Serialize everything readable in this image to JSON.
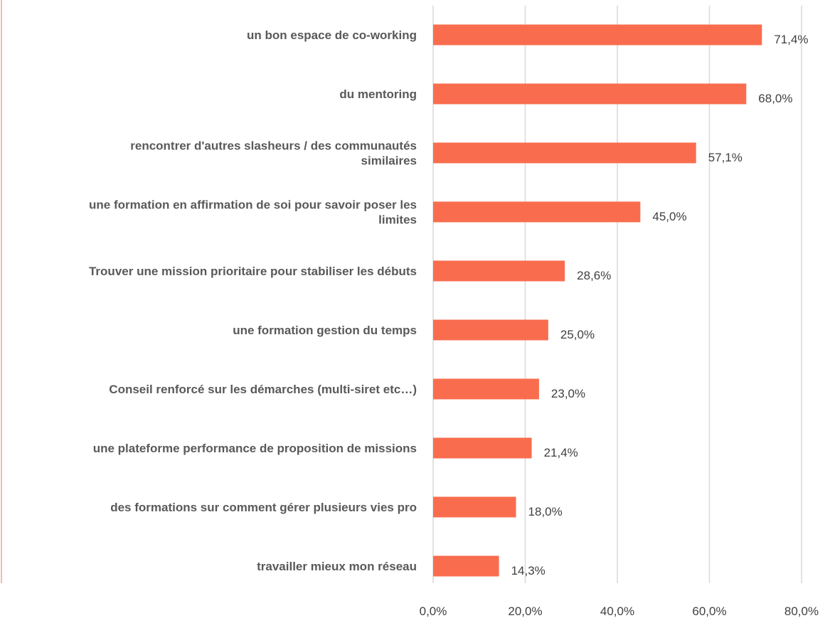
{
  "chart_data": {
    "type": "bar",
    "orientation": "horizontal",
    "categories": [
      "un bon espace de co-working",
      "du mentoring",
      "rencontrer d'autres slasheurs / des communautés similaires",
      "une formation en affirmation de soi pour savoir poser les limites",
      "Trouver une mission prioritaire pour stabiliser les débuts",
      "une formation gestion du temps",
      "Conseil renforcé sur les démarches (multi-siret etc…)",
      "une plateforme performance de proposition de missions",
      "des formations sur comment gérer plusieurs vies pro",
      "travailler mieux mon réseau"
    ],
    "category_lines": [
      [
        "un bon espace de co-working"
      ],
      [
        "du mentoring"
      ],
      [
        "rencontrer d'autres slasheurs / des communautés",
        "similaires"
      ],
      [
        "une formation en affirmation de soi pour savoir poser les",
        "limites"
      ],
      [
        "Trouver une mission prioritaire pour stabiliser les débuts"
      ],
      [
        "une formation gestion du temps"
      ],
      [
        "Conseil renforcé sur les démarches (multi-siret etc…)"
      ],
      [
        "une plateforme performance de proposition de missions"
      ],
      [
        "des formations sur comment gérer plusieurs vies pro"
      ],
      [
        "travailler mieux mon réseau"
      ]
    ],
    "values": [
      71.4,
      68.0,
      57.1,
      45.0,
      28.6,
      25.0,
      23.0,
      21.4,
      18.0,
      14.3
    ],
    "data_labels": [
      "71,4%",
      "68,0%",
      "57,1%",
      "45,0%",
      "28,6%",
      "25,0%",
      "23,0%",
      "21,4%",
      "18,0%",
      "14,3%"
    ],
    "x_ticks": [
      0,
      20,
      40,
      60,
      80
    ],
    "x_tick_labels": [
      "0,0%",
      "20,0%",
      "40,0%",
      "60,0%",
      "80,0%"
    ],
    "xlim": [
      0,
      80
    ],
    "title": "",
    "xlabel": "",
    "ylabel": "",
    "grid": "vertical",
    "legend": "none",
    "bar_color": "#f96d4e",
    "grid_color": "#d9d9d9"
  }
}
